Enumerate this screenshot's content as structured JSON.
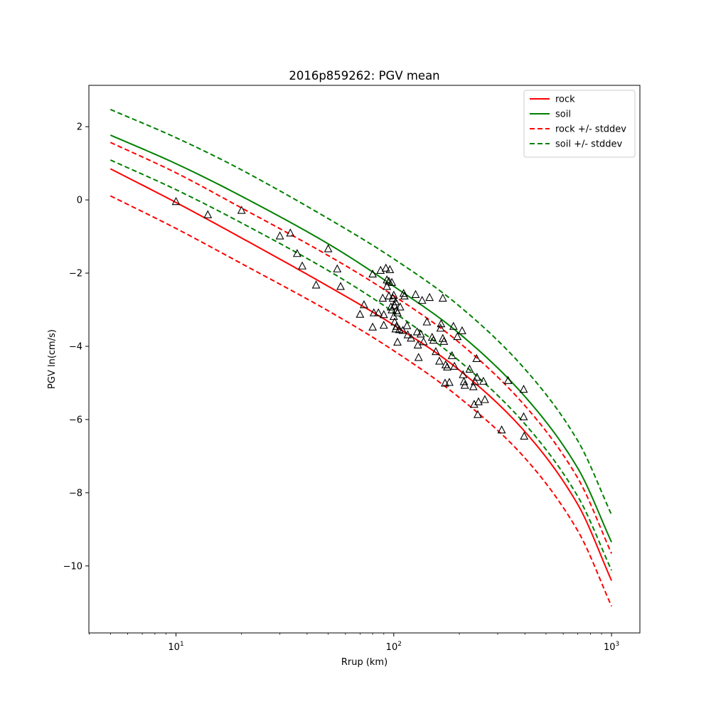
{
  "chart_data": {
    "type": "line",
    "title": "2016p859262: PGV mean",
    "xlabel": "Rrup (km)",
    "ylabel": "PGV ln(cm/s)",
    "xscale": "log",
    "xlim": [
      3.98,
      1350
    ],
    "ylim": [
      -11.83,
      3.13
    ],
    "grid": false,
    "legend_position": "top-right",
    "x_ticks": [
      {
        "value": 10,
        "base": "10",
        "exp": "1"
      },
      {
        "value": 100,
        "base": "10",
        "exp": "2"
      },
      {
        "value": 1000,
        "base": "10",
        "exp": "3"
      }
    ],
    "y_ticks": [
      {
        "value": 2,
        "label": "2"
      },
      {
        "value": 0,
        "label": "0"
      },
      {
        "value": -2,
        "label": "−2"
      },
      {
        "value": -4,
        "label": "−4"
      },
      {
        "value": -6,
        "label": "−6"
      },
      {
        "value": -8,
        "label": "−8"
      },
      {
        "value": -10,
        "label": "−10"
      }
    ],
    "series": [
      {
        "name": "rock",
        "color": "#ff0000",
        "dash": "solid",
        "x": [
          5,
          10,
          20,
          50,
          100,
          200,
          400,
          700,
          1000
        ],
        "y": [
          0.85,
          -0.07,
          -1.04,
          -2.36,
          -3.42,
          -4.65,
          -6.33,
          -8.32,
          -10.4
        ]
      },
      {
        "name": "soil",
        "color": "#008000",
        "dash": "solid",
        "x": [
          5,
          10,
          20,
          50,
          100,
          200,
          400,
          700,
          1000
        ],
        "y": [
          1.77,
          0.99,
          0.1,
          -1.2,
          -2.36,
          -3.65,
          -5.37,
          -7.33,
          -9.35
        ]
      },
      {
        "name": "rock +/- stddev",
        "color": "#ff0000",
        "dash": "dashed",
        "x": [
          5,
          10,
          20,
          50,
          100,
          200,
          400,
          700,
          1000
        ],
        "y": [
          1.57,
          0.74,
          -0.22,
          -1.52,
          -2.62,
          -3.9,
          -5.62,
          -7.6,
          -9.66
        ]
      },
      {
        "name": "",
        "color": "#ff0000",
        "dash": "dashed",
        "x": [
          5,
          10,
          20,
          50,
          100,
          200,
          400,
          700,
          1000
        ],
        "y": [
          0.11,
          -0.78,
          -1.74,
          -3.03,
          -4.12,
          -5.4,
          -7.05,
          -9.04,
          -11.1
        ]
      },
      {
        "name": "soil +/- stddev",
        "color": "#008000",
        "dash": "dashed",
        "x": [
          5,
          10,
          20,
          50,
          100,
          200,
          400,
          700,
          1000
        ],
        "y": [
          2.47,
          1.7,
          0.82,
          -0.51,
          -1.61,
          -2.9,
          -4.62,
          -6.58,
          -8.6
        ]
      },
      {
        "name": "",
        "color": "#008000",
        "dash": "dashed",
        "x": [
          5,
          10,
          20,
          50,
          100,
          200,
          400,
          700,
          1000
        ],
        "y": [
          1.09,
          0.28,
          -0.63,
          -1.93,
          -3.07,
          -4.4,
          -6.12,
          -8.1,
          -10.12
        ]
      }
    ],
    "observations": {
      "marker": "triangle",
      "color": "#000000",
      "points": [
        [
          10,
          -0.04
        ],
        [
          14,
          -0.4
        ],
        [
          20,
          -0.28
        ],
        [
          30,
          -0.98
        ],
        [
          33.5,
          -0.9
        ],
        [
          36,
          -1.46
        ],
        [
          38,
          -1.8
        ],
        [
          44,
          -2.32
        ],
        [
          50,
          -1.33
        ],
        [
          55,
          -1.88
        ],
        [
          57,
          -2.36
        ],
        [
          70,
          -3.12
        ],
        [
          73,
          -2.86
        ],
        [
          80,
          -2.02
        ],
        [
          81,
          -3.08
        ],
        [
          80,
          -3.47
        ],
        [
          85,
          -3.08
        ],
        [
          87,
          -1.92
        ],
        [
          89,
          -2.68
        ],
        [
          90,
          -3.13
        ],
        [
          90,
          -3.42
        ],
        [
          92,
          -1.86
        ],
        [
          93,
          -2.18
        ],
        [
          93,
          -2.36
        ],
        [
          95,
          -2.22
        ],
        [
          95,
          -2.62
        ],
        [
          96,
          -1.9
        ],
        [
          97,
          -2.92
        ],
        [
          98,
          -2.25
        ],
        [
          98,
          -3.0
        ],
        [
          99,
          -2.68
        ],
        [
          100,
          -2.6
        ],
        [
          100,
          -3.18
        ],
        [
          101,
          -2.88
        ],
        [
          101,
          -3.33
        ],
        [
          102,
          -2.78
        ],
        [
          102,
          -3.52
        ],
        [
          103,
          -3.02
        ],
        [
          103,
          -3.45
        ],
        [
          104,
          -3.08
        ],
        [
          104,
          -3.88
        ],
        [
          106,
          -3.54
        ],
        [
          107,
          -2.92
        ],
        [
          110,
          -3.56
        ],
        [
          111,
          -2.55
        ],
        [
          112,
          -2.62
        ],
        [
          115,
          -3.43
        ],
        [
          116,
          -3.68
        ],
        [
          120,
          -3.77
        ],
        [
          126,
          -2.58
        ],
        [
          128,
          -3.6
        ],
        [
          129,
          -3.96
        ],
        [
          130,
          -4.3
        ],
        [
          133,
          -3.66
        ],
        [
          135,
          -2.74
        ],
        [
          137,
          -3.87
        ],
        [
          142,
          -3.33
        ],
        [
          146,
          -2.66
        ],
        [
          150,
          -3.75
        ],
        [
          152,
          -3.83
        ],
        [
          156,
          -4.14
        ],
        [
          162,
          -4.4
        ],
        [
          164,
          -3.5
        ],
        [
          165,
          -3.38
        ],
        [
          168,
          -2.68
        ],
        [
          168,
          -3.78
        ],
        [
          170,
          -3.86
        ],
        [
          172,
          -5.0
        ],
        [
          173,
          -4.5
        ],
        [
          176,
          -4.56
        ],
        [
          180,
          -4.98
        ],
        [
          185,
          -4.25
        ],
        [
          188,
          -3.45
        ],
        [
          190,
          -4.54
        ],
        [
          196,
          -3.73
        ],
        [
          206,
          -3.57
        ],
        [
          208,
          -4.77
        ],
        [
          210,
          -4.96
        ],
        [
          212,
          -5.06
        ],
        [
          223,
          -4.62
        ],
        [
          232,
          -5.1
        ],
        [
          234,
          -5.58
        ],
        [
          236,
          -4.96
        ],
        [
          240,
          -4.33
        ],
        [
          241,
          -4.84
        ],
        [
          243,
          -5.86
        ],
        [
          245,
          -5.51
        ],
        [
          258,
          -4.95
        ],
        [
          262,
          -5.45
        ],
        [
          313,
          -6.28
        ],
        [
          335,
          -4.93
        ],
        [
          395,
          -5.17
        ],
        [
          395,
          -5.92
        ],
        [
          397,
          -6.45
        ]
      ]
    }
  }
}
